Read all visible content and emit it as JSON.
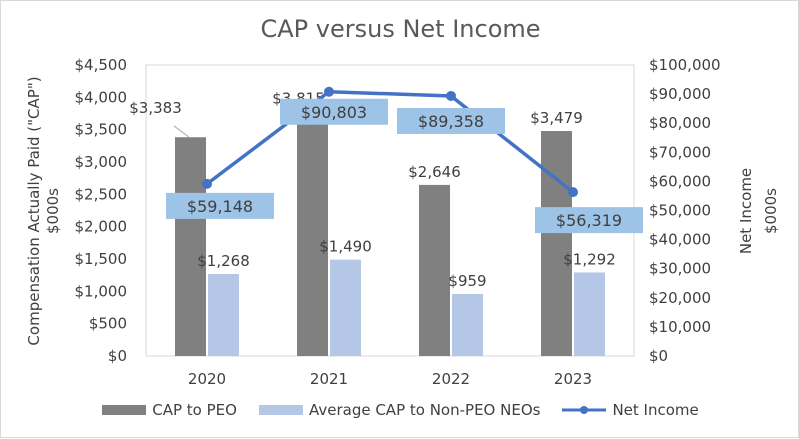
{
  "chart_data": {
    "type": "bar",
    "title": "CAP versus Net Income",
    "categories": [
      "2020",
      "2021",
      "2022",
      "2023"
    ],
    "series": [
      {
        "name": "CAP to PEO",
        "type": "bar",
        "axis": "left",
        "values": [
          3383,
          3815,
          2646,
          3479
        ],
        "labels": [
          "$3,383",
          "$3,815",
          "$2,646",
          "$3,479"
        ],
        "color": "#808080"
      },
      {
        "name": "Average CAP to Non-PEO NEOs",
        "type": "bar",
        "axis": "left",
        "values": [
          1268,
          1490,
          959,
          1292
        ],
        "labels": [
          "$1,268",
          "$1,490",
          "$959",
          "$1,292"
        ],
        "color": "#B4C7E7"
      },
      {
        "name": "Net Income",
        "type": "line",
        "axis": "right",
        "values": [
          59148,
          90803,
          89358,
          56319
        ],
        "labels": [
          "$59,148",
          "$90,803",
          "$89,358",
          "$56,319"
        ],
        "color": "#4472C4"
      }
    ],
    "ylabel": [
      "Compensation Actually Paid (\"CAP\")",
      "$000s"
    ],
    "y2label": [
      "Net Income",
      "$000s"
    ],
    "ylim": [
      0,
      4500
    ],
    "y2lim": [
      0,
      100000
    ],
    "yticks": [
      "$0",
      "$500",
      "$1,000",
      "$1,500",
      "$2,000",
      "$2,500",
      "$3,000",
      "$3,500",
      "$4,000",
      "$4,500"
    ],
    "y2ticks": [
      "$0",
      "$10,000",
      "$20,000",
      "$30,000",
      "$40,000",
      "$50,000",
      "$60,000",
      "$70,000",
      "$80,000",
      "$90,000",
      "$100,000"
    ],
    "grid": false,
    "legend_position": "bottom",
    "line_label_bg": "#9DC3E6"
  }
}
